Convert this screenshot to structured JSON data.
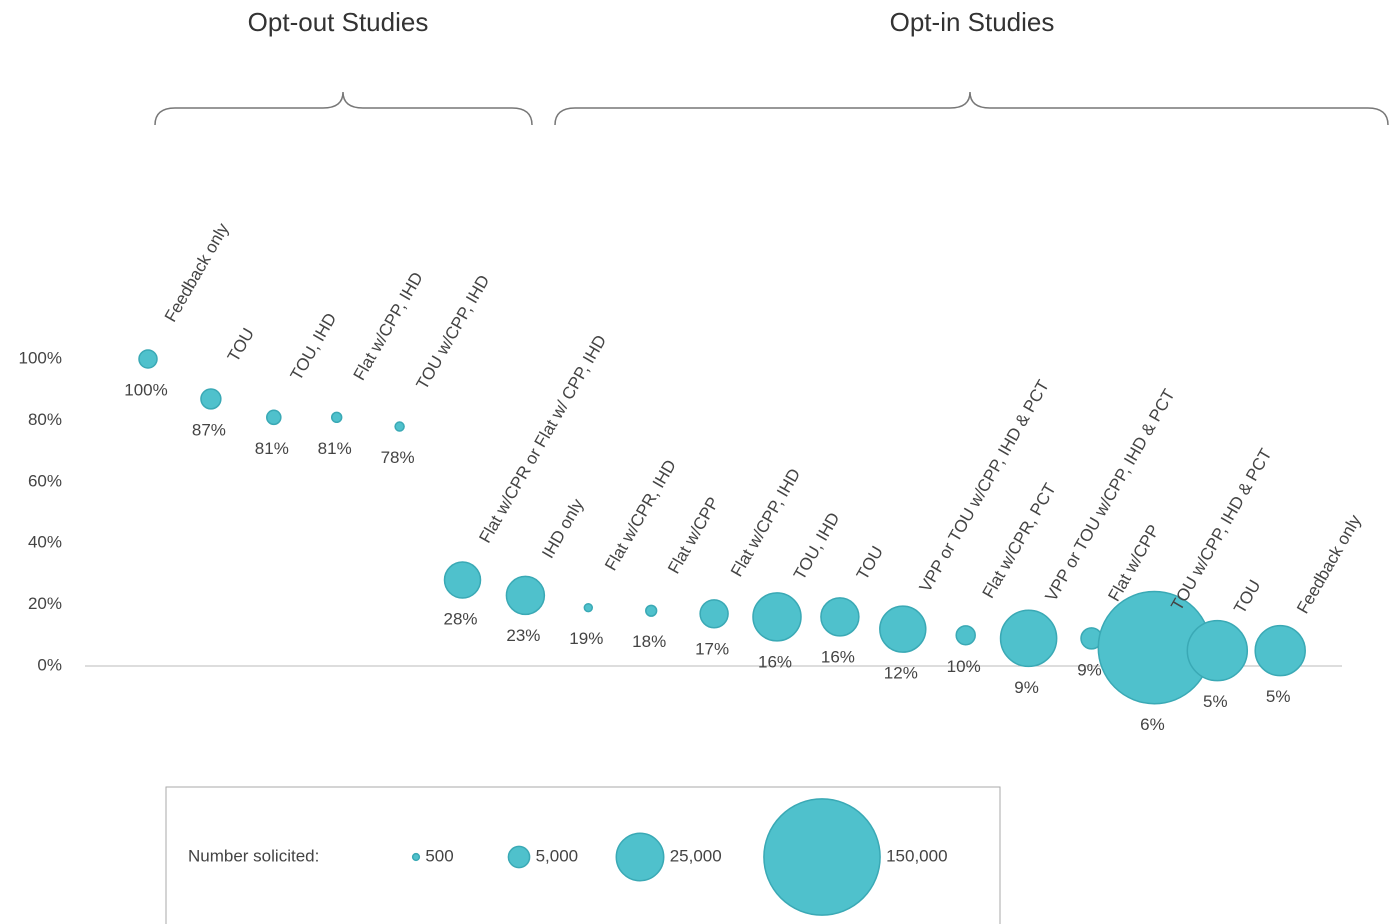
{
  "chart_data": {
    "type": "bubble",
    "color": "#4fc1cc",
    "series": [
      {
        "name": "Opt-out Studies",
        "categories": [
          "Feedback only",
          "TOU",
          "TOU, IHD",
          "Flat w/CPP, IHD",
          "TOU w/CPP, IHD"
        ],
        "values": [
          100,
          87,
          81,
          81,
          78
        ],
        "value_labels": [
          "100%",
          "87%",
          "81%",
          "81%",
          "78%"
        ],
        "sizes": [
          3600,
          4400,
          2200,
          1100,
          900
        ]
      },
      {
        "name": "Opt-in Studies",
        "categories": [
          "Flat w/CPR or Flat w/ CPP, IHD",
          "IHD only",
          "Flat w/CPR, IHD",
          "Flat w/CPP",
          "Flat w/CPP, IHD",
          "TOU, IHD",
          "TOU",
          "VPP or TOU w/CPP, IHD & PCT",
          "Flat w/CPR, PCT",
          "VPP or TOU w/CPP, IHD & PCT",
          "Flat w/CPP",
          "TOU w/CPP, IHD & PCT",
          "TOU",
          "Feedback only"
        ],
        "values": [
          28,
          23,
          19,
          18,
          17,
          16,
          16,
          12,
          10,
          9,
          9,
          6,
          5,
          5
        ],
        "value_labels": [
          "28%",
          "23%",
          "19%",
          "18%",
          "17%",
          "16%",
          "16%",
          "12%",
          "10%",
          "9%",
          "9%",
          "6%",
          "5%",
          "5%"
        ],
        "sizes": [
          14400,
          16000,
          700,
          1300,
          8700,
          25600,
          16000,
          23500,
          4000,
          35000,
          4900,
          140000,
          40000,
          27800
        ]
      }
    ],
    "ylim": [
      0,
      100
    ],
    "yticks": [
      {
        "value": 0,
        "label": "0%"
      },
      {
        "value": 20,
        "label": "20%"
      },
      {
        "value": 40,
        "label": "40%"
      },
      {
        "value": 60,
        "label": "60%"
      },
      {
        "value": 80,
        "label": "80%"
      },
      {
        "value": 100,
        "label": "100%"
      }
    ],
    "size_legend": {
      "title": "Number solicited:",
      "sizes": [
        500,
        {
          "value": 5000,
          "label": "5,000"
        },
        {
          "value": 25000,
          "label": "25,000"
        },
        {
          "value": 150000,
          "label": "150,000"
        }
      ]
    }
  }
}
